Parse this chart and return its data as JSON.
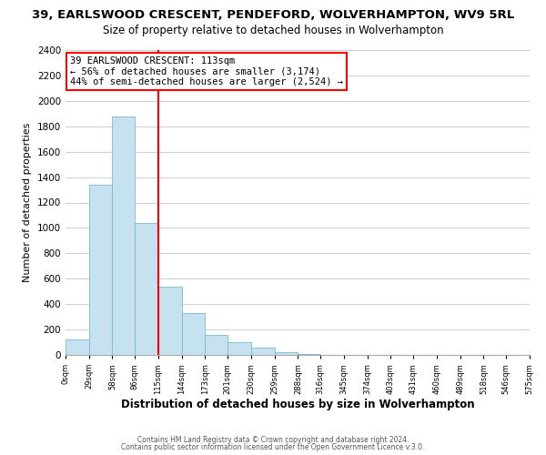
{
  "title1": "39, EARLSWOOD CRESCENT, PENDEFORD, WOLVERHAMPTON, WV9 5RL",
  "title2": "Size of property relative to detached houses in Wolverhampton",
  "xlabel": "Distribution of detached houses by size in Wolverhampton",
  "ylabel": "Number of detached properties",
  "bin_edges": [
    0,
    29,
    58,
    86,
    115,
    144,
    173,
    201,
    230,
    259,
    288,
    316,
    345,
    374,
    403,
    431,
    460,
    489,
    518,
    546,
    575
  ],
  "bar_heights": [
    120,
    1340,
    1880,
    1040,
    540,
    330,
    160,
    100,
    55,
    25,
    10,
    3,
    1,
    0,
    0,
    0,
    0,
    0,
    0,
    1
  ],
  "bar_color": "#c6e2f0",
  "bar_edgecolor": "#7ab8d4",
  "vline_x": 115,
  "vline_color": "red",
  "annotation_title": "39 EARLSWOOD CRESCENT: 113sqm",
  "annotation_line1": "← 56% of detached houses are smaller (3,174)",
  "annotation_line2": "44% of semi-detached houses are larger (2,524) →",
  "ylim": [
    0,
    2400
  ],
  "yticks": [
    0,
    200,
    400,
    600,
    800,
    1000,
    1200,
    1400,
    1600,
    1800,
    2000,
    2200,
    2400
  ],
  "xtick_labels": [
    "0sqm",
    "29sqm",
    "58sqm",
    "86sqm",
    "115sqm",
    "144sqm",
    "173sqm",
    "201sqm",
    "230sqm",
    "259sqm",
    "288sqm",
    "316sqm",
    "345sqm",
    "374sqm",
    "403sqm",
    "431sqm",
    "460sqm",
    "489sqm",
    "518sqm",
    "546sqm",
    "575sqm"
  ],
  "footer1": "Contains HM Land Registry data © Crown copyright and database right 2024.",
  "footer2": "Contains public sector information licensed under the Open Government Licence v.3.0.",
  "background_color": "#ffffff",
  "plot_background": "#ffffff",
  "grid_color": "#d0d0d0",
  "title1_fontsize": 9.5,
  "title2_fontsize": 8.5,
  "annotation_box_color": "white",
  "annotation_box_edgecolor": "red"
}
